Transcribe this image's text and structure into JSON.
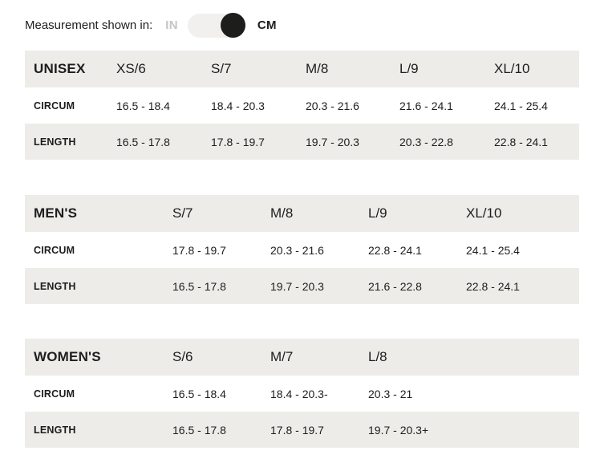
{
  "colors": {
    "row_gray": "#edece9",
    "text": "#1d1d1d",
    "inactive_unit": "#c6c5c3",
    "toggle_track": "#f1f0ee",
    "toggle_knob": "#1d1d1b"
  },
  "toggle": {
    "label": "Measurement shown in:",
    "option_in": "IN",
    "option_cm": "CM",
    "selected": "CM"
  },
  "tables": [
    {
      "name": "UNISEX",
      "sizes": [
        "XS/6",
        "S/7",
        "M/8",
        "L/9",
        "XL/10"
      ],
      "rows": [
        {
          "label": "CIRCUM",
          "values": [
            "16.5 - 18.4",
            "18.4 - 20.3",
            "20.3 - 21.6",
            "21.6 - 24.1",
            "24.1 - 25.4"
          ]
        },
        {
          "label": "LENGTH",
          "values": [
            "16.5 - 17.8",
            "17.8 - 19.7",
            "19.7 - 20.3",
            "20.3 - 22.8",
            "22.8 - 24.1"
          ]
        }
      ]
    },
    {
      "name": "MEN'S",
      "sizes": [
        "S/7",
        "M/8",
        "L/9",
        "XL/10"
      ],
      "rows": [
        {
          "label": "CIRCUM",
          "values": [
            "17.8 - 19.7",
            "20.3 - 21.6",
            "22.8 - 24.1",
            "24.1 - 25.4"
          ]
        },
        {
          "label": "LENGTH",
          "values": [
            "16.5 - 17.8",
            "19.7 - 20.3",
            "21.6 - 22.8",
            "22.8 - 24.1"
          ]
        }
      ]
    },
    {
      "name": "WOMEN'S",
      "sizes": [
        "S/6",
        "M/7",
        "L/8"
      ],
      "rows": [
        {
          "label": "CIRCUM",
          "values": [
            "16.5 - 18.4",
            "18.4 - 20.3-",
            "20.3 - 21"
          ]
        },
        {
          "label": "LENGTH",
          "values": [
            "16.5 - 17.8",
            "17.8 - 19.7",
            "19.7 - 20.3+"
          ]
        }
      ]
    }
  ]
}
